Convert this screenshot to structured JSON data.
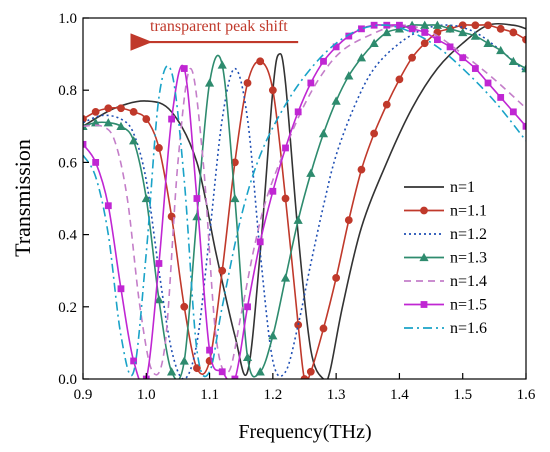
{
  "chart_data": {
    "type": "line",
    "xlabel": "Frequency(THz)",
    "ylabel": "Transmission",
    "xlim": [
      0.9,
      1.6
    ],
    "ylim": [
      0.0,
      1.0
    ],
    "xticks": [
      "0.9",
      "1.0",
      "1.1",
      "1.2",
      "1.3",
      "1.4",
      "1.5",
      "1.6"
    ],
    "yticks": [
      "0.0",
      "0.2",
      "0.4",
      "0.6",
      "0.8",
      "1.0"
    ],
    "grid": false,
    "legend_position": "right",
    "annotation": {
      "text": "transparent peak shift",
      "color": "#c0392b",
      "arrow_from": [
        1.24,
        0.95
      ],
      "arrow_to": [
        0.99,
        0.95
      ]
    },
    "series": [
      {
        "name": "n=1",
        "color": "#333333",
        "dash": "solid",
        "marker": "none",
        "x": [
          0.9,
          0.95,
          1.0,
          1.04,
          1.08,
          1.11,
          1.14,
          1.16,
          1.18,
          1.2,
          1.21,
          1.22,
          1.24,
          1.26,
          1.28,
          1.29,
          1.31,
          1.34,
          1.38,
          1.42,
          1.46,
          1.5,
          1.54,
          1.58,
          1.6
        ],
        "y": [
          0.7,
          0.75,
          0.77,
          0.74,
          0.6,
          0.35,
          0.12,
          0.02,
          0.35,
          0.8,
          0.9,
          0.82,
          0.4,
          0.08,
          0.0,
          0.02,
          0.2,
          0.42,
          0.6,
          0.75,
          0.86,
          0.93,
          0.98,
          0.98,
          0.97
        ]
      },
      {
        "name": "n=1.1",
        "color": "#c0392b",
        "dash": "solid",
        "marker": "circle",
        "x": [
          0.9,
          0.92,
          0.94,
          0.96,
          0.98,
          1.0,
          1.02,
          1.04,
          1.06,
          1.08,
          1.1,
          1.12,
          1.14,
          1.16,
          1.18,
          1.2,
          1.22,
          1.24,
          1.25,
          1.26,
          1.28,
          1.3,
          1.32,
          1.34,
          1.36,
          1.38,
          1.4,
          1.42,
          1.44,
          1.46,
          1.48,
          1.5,
          1.52,
          1.54,
          1.56,
          1.58,
          1.6
        ],
        "y": [
          0.72,
          0.74,
          0.75,
          0.75,
          0.74,
          0.72,
          0.64,
          0.45,
          0.2,
          0.03,
          0.05,
          0.3,
          0.6,
          0.82,
          0.88,
          0.8,
          0.5,
          0.15,
          0.0,
          0.02,
          0.14,
          0.28,
          0.44,
          0.58,
          0.68,
          0.76,
          0.83,
          0.89,
          0.93,
          0.96,
          0.97,
          0.98,
          0.98,
          0.98,
          0.97,
          0.96,
          0.94
        ]
      },
      {
        "name": "n=1.2",
        "color": "#1f4fb4",
        "dash": "dot",
        "marker": "none",
        "x": [
          0.9,
          0.93,
          0.96,
          0.98,
          1.0,
          1.02,
          1.04,
          1.06,
          1.08,
          1.1,
          1.12,
          1.14,
          1.16,
          1.18,
          1.2,
          1.22,
          1.24,
          1.26,
          1.28,
          1.3,
          1.33,
          1.36,
          1.4,
          1.44,
          1.48,
          1.52,
          1.56,
          1.6
        ],
        "y": [
          0.71,
          0.73,
          0.72,
          0.68,
          0.55,
          0.3,
          0.08,
          0.0,
          0.1,
          0.4,
          0.72,
          0.86,
          0.72,
          0.35,
          0.05,
          0.02,
          0.15,
          0.32,
          0.48,
          0.62,
          0.76,
          0.86,
          0.93,
          0.97,
          0.98,
          0.96,
          0.91,
          0.85
        ]
      },
      {
        "name": "n=1.3",
        "color": "#2e8b6e",
        "dash": "solid",
        "marker": "triangle",
        "x": [
          0.9,
          0.92,
          0.94,
          0.96,
          0.98,
          1.0,
          1.02,
          1.04,
          1.06,
          1.08,
          1.1,
          1.12,
          1.14,
          1.16,
          1.18,
          1.2,
          1.22,
          1.24,
          1.26,
          1.28,
          1.3,
          1.32,
          1.34,
          1.36,
          1.38,
          1.4,
          1.42,
          1.44,
          1.46,
          1.48,
          1.5,
          1.52,
          1.54,
          1.56,
          1.58,
          1.6
        ],
        "y": [
          0.7,
          0.71,
          0.71,
          0.7,
          0.66,
          0.5,
          0.22,
          0.02,
          0.05,
          0.45,
          0.82,
          0.87,
          0.5,
          0.06,
          0.02,
          0.12,
          0.28,
          0.44,
          0.57,
          0.68,
          0.77,
          0.84,
          0.89,
          0.93,
          0.96,
          0.97,
          0.98,
          0.98,
          0.98,
          0.97,
          0.96,
          0.95,
          0.93,
          0.91,
          0.88,
          0.86
        ]
      },
      {
        "name": "n=1.4",
        "color": "#c47ec9",
        "dash": "dash",
        "marker": "none",
        "x": [
          0.9,
          0.93,
          0.95,
          0.97,
          0.99,
          1.01,
          1.03,
          1.05,
          1.07,
          1.09,
          1.11,
          1.13,
          1.15,
          1.17,
          1.19,
          1.22,
          1.25,
          1.28,
          1.31,
          1.35,
          1.4,
          1.45,
          1.5,
          1.55,
          1.6
        ],
        "y": [
          0.7,
          0.7,
          0.66,
          0.5,
          0.2,
          0.02,
          0.1,
          0.6,
          0.86,
          0.6,
          0.12,
          0.02,
          0.18,
          0.36,
          0.5,
          0.64,
          0.76,
          0.85,
          0.91,
          0.95,
          0.98,
          0.96,
          0.9,
          0.83,
          0.75
        ]
      },
      {
        "name": "n=1.5",
        "color": "#c026d3",
        "dash": "solid",
        "marker": "square",
        "x": [
          0.9,
          0.92,
          0.94,
          0.96,
          0.98,
          1.0,
          1.02,
          1.04,
          1.06,
          1.08,
          1.1,
          1.12,
          1.14,
          1.16,
          1.18,
          1.2,
          1.22,
          1.24,
          1.26,
          1.28,
          1.3,
          1.32,
          1.34,
          1.36,
          1.38,
          1.4,
          1.42,
          1.44,
          1.46,
          1.48,
          1.5,
          1.52,
          1.54,
          1.56,
          1.58,
          1.6
        ],
        "y": [
          0.65,
          0.6,
          0.48,
          0.25,
          0.05,
          0.0,
          0.32,
          0.72,
          0.86,
          0.5,
          0.08,
          0.02,
          0.0,
          0.2,
          0.38,
          0.52,
          0.64,
          0.74,
          0.82,
          0.88,
          0.92,
          0.95,
          0.97,
          0.98,
          0.98,
          0.98,
          0.97,
          0.96,
          0.94,
          0.92,
          0.89,
          0.86,
          0.82,
          0.78,
          0.74,
          0.7
        ]
      },
      {
        "name": "n=1.6",
        "color": "#1aa3c8",
        "dash": "dashdot",
        "marker": "none",
        "x": [
          0.9,
          0.92,
          0.94,
          0.96,
          0.98,
          1.0,
          1.02,
          1.04,
          1.06,
          1.08,
          1.1,
          1.12,
          1.15,
          1.18,
          1.22,
          1.26,
          1.3,
          1.34,
          1.38,
          1.42,
          1.46,
          1.5,
          1.55,
          1.6
        ],
        "y": [
          0.62,
          0.56,
          0.4,
          0.12,
          0.02,
          0.35,
          0.78,
          0.85,
          0.55,
          0.08,
          0.02,
          0.2,
          0.45,
          0.62,
          0.76,
          0.86,
          0.93,
          0.97,
          0.98,
          0.96,
          0.92,
          0.86,
          0.77,
          0.66
        ]
      }
    ]
  }
}
